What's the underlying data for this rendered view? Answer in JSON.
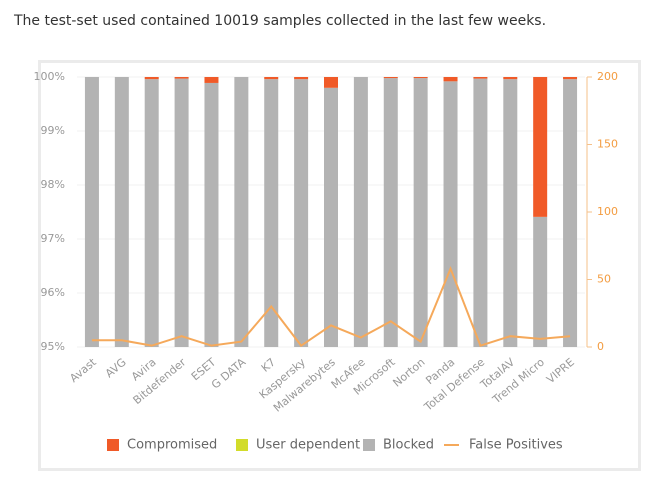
{
  "caption": "The test-set used contained 10019 samples collected in the last few weeks.",
  "chart_data": {
    "type": "bar",
    "stacked": true,
    "categories": [
      "Avast",
      "AVG",
      "Avira",
      "Bitdefender",
      "ESET",
      "G DATA",
      "K7",
      "Kaspersky",
      "Malwarebytes",
      "McAfee",
      "Microsoft",
      "Norton",
      "Panda",
      "Total Defense",
      "TotalAV",
      "Trend Micro",
      "VIPRE"
    ],
    "series": [
      {
        "name": "Compromised",
        "color": "#f05a28",
        "values": [
          0,
          0,
          0.04,
          0.03,
          0.11,
          0,
          0.04,
          0.04,
          0.2,
          0,
          0.02,
          0.02,
          0.08,
          0.03,
          0.04,
          2.59,
          0.04
        ]
      },
      {
        "name": "User dependent",
        "color": "#d2dc2a",
        "values": [
          0,
          0,
          0,
          0,
          0,
          0,
          0,
          0,
          0,
          0,
          0,
          0,
          0,
          0,
          0,
          0,
          0
        ]
      },
      {
        "name": "Blocked",
        "color": "#b3b3b3",
        "values": [
          100,
          100,
          99.96,
          99.97,
          99.89,
          100,
          99.96,
          99.96,
          99.8,
          100,
          99.98,
          99.98,
          99.92,
          99.97,
          99.96,
          97.41,
          99.96
        ]
      },
      {
        "name": "False Positives",
        "type": "line",
        "axis": "y2",
        "color": "#f5a95b",
        "values": [
          5,
          5,
          1,
          8,
          1,
          4,
          30,
          1,
          16,
          7,
          19,
          4,
          58,
          1,
          8,
          6,
          8
        ]
      }
    ],
    "ylim": [
      95,
      100
    ],
    "yticks": [
      {
        "value": 95,
        "label": "95%"
      },
      {
        "value": 96,
        "label": "96%"
      },
      {
        "value": 97,
        "label": "97%"
      },
      {
        "value": 98,
        "label": "98%"
      },
      {
        "value": 99,
        "label": "99%"
      },
      {
        "value": 100,
        "label": "100%"
      }
    ],
    "y2lim": [
      0,
      200
    ],
    "y2ticks": [
      0,
      50,
      100,
      150,
      200
    ],
    "grid": true,
    "legend": "bottom"
  }
}
